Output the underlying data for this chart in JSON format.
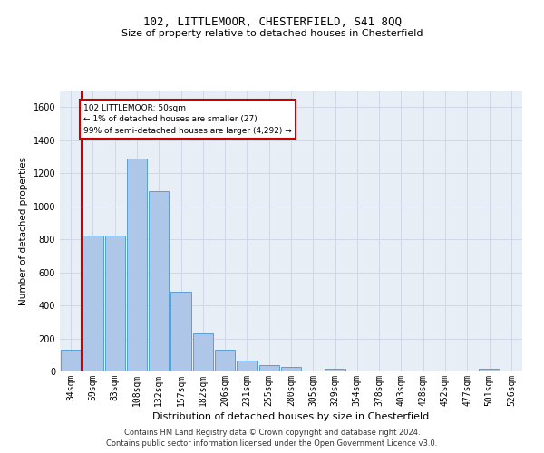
{
  "title1": "102, LITTLEMOOR, CHESTERFIELD, S41 8QQ",
  "title2": "Size of property relative to detached houses in Chesterfield",
  "xlabel": "Distribution of detached houses by size in Chesterfield",
  "ylabel": "Number of detached properties",
  "categories": [
    "34sqm",
    "59sqm",
    "83sqm",
    "108sqm",
    "132sqm",
    "157sqm",
    "182sqm",
    "206sqm",
    "231sqm",
    "255sqm",
    "280sqm",
    "305sqm",
    "329sqm",
    "354sqm",
    "378sqm",
    "403sqm",
    "428sqm",
    "452sqm",
    "477sqm",
    "501sqm",
    "526sqm"
  ],
  "values": [
    130,
    820,
    820,
    1290,
    1090,
    485,
    230,
    130,
    65,
    38,
    27,
    0,
    18,
    0,
    0,
    0,
    0,
    0,
    0,
    15,
    0
  ],
  "bar_color": "#aec6e8",
  "bar_edge_color": "#5a9fd4",
  "highlight_color": "#cc0000",
  "annotation_text": "102 LITTLEMOOR: 50sqm\n← 1% of detached houses are smaller (27)\n99% of semi-detached houses are larger (4,292) →",
  "annotation_box_color": "#ffffff",
  "annotation_border_color": "#cc0000",
  "ylim": [
    0,
    1700
  ],
  "yticks": [
    0,
    200,
    400,
    600,
    800,
    1000,
    1200,
    1400,
    1600
  ],
  "grid_color": "#d0d8e8",
  "bg_color": "#e8eef5",
  "footer1": "Contains HM Land Registry data © Crown copyright and database right 2024.",
  "footer2": "Contains public sector information licensed under the Open Government Licence v3.0.",
  "title1_fontsize": 9,
  "title2_fontsize": 8,
  "xlabel_fontsize": 8,
  "ylabel_fontsize": 7.5,
  "tick_fontsize": 7,
  "footer_fontsize": 6
}
